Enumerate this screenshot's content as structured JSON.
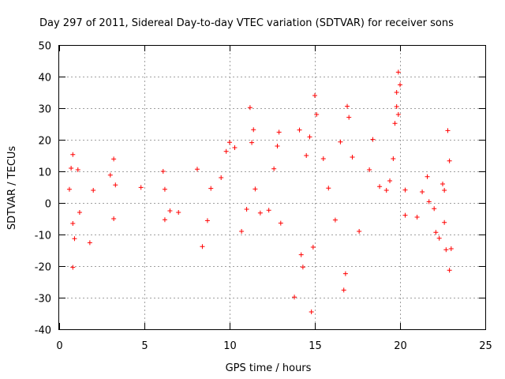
{
  "chart_data": {
    "type": "scatter",
    "title": "Day 297 of 2011, Sidereal Day-to-day VTEC variation (SDTVAR) for receiver sons",
    "xlabel": "GPS time / hours",
    "ylabel": "SDTVAR / TECUs",
    "xlim": [
      0,
      25
    ],
    "ylim": [
      -40,
      50
    ],
    "xticks": [
      0,
      5,
      10,
      15,
      20,
      25
    ],
    "yticks": [
      -40,
      -30,
      -20,
      -10,
      0,
      10,
      20,
      30,
      40,
      50
    ],
    "grid": true,
    "marker": "+",
    "color": "#ff0000",
    "series": [
      {
        "name": "SDTVAR",
        "points": [
          [
            0.8,
            15.3
          ],
          [
            0.7,
            11.0
          ],
          [
            1.1,
            10.5
          ],
          [
            0.6,
            4.3
          ],
          [
            0.8,
            -6.5
          ],
          [
            0.9,
            -11.3
          ],
          [
            0.8,
            -20.4
          ],
          [
            1.2,
            -3.0
          ],
          [
            1.8,
            -12.6
          ],
          [
            2.0,
            4.0
          ],
          [
            3.0,
            8.8
          ],
          [
            3.2,
            13.9
          ],
          [
            3.3,
            5.7
          ],
          [
            3.2,
            -5.0
          ],
          [
            4.8,
            4.9
          ],
          [
            6.1,
            10.0
          ],
          [
            6.2,
            4.3
          ],
          [
            6.2,
            -5.3
          ],
          [
            6.5,
            -2.5
          ],
          [
            7.0,
            -3.0
          ],
          [
            8.1,
            10.7
          ],
          [
            8.4,
            -13.8
          ],
          [
            8.7,
            -5.6
          ],
          [
            8.9,
            4.6
          ],
          [
            9.5,
            8.0
          ],
          [
            9.8,
            16.3
          ],
          [
            10.0,
            19.2
          ],
          [
            10.3,
            17.5
          ],
          [
            10.7,
            -9.0
          ],
          [
            11.0,
            -2.0
          ],
          [
            11.2,
            30.2
          ],
          [
            11.3,
            19.1
          ],
          [
            11.4,
            23.2
          ],
          [
            11.5,
            4.4
          ],
          [
            11.8,
            -3.2
          ],
          [
            12.3,
            -2.3
          ],
          [
            12.6,
            10.8
          ],
          [
            12.8,
            18.0
          ],
          [
            12.9,
            22.4
          ],
          [
            13.0,
            -6.4
          ],
          [
            13.8,
            -29.8
          ],
          [
            14.1,
            23.1
          ],
          [
            14.2,
            -16.4
          ],
          [
            14.3,
            -20.3
          ],
          [
            14.5,
            15.0
          ],
          [
            14.7,
            20.9
          ],
          [
            14.8,
            -34.5
          ],
          [
            14.9,
            -14.0
          ],
          [
            15.0,
            34.0
          ],
          [
            15.1,
            28.0
          ],
          [
            15.5,
            14.0
          ],
          [
            15.8,
            4.7
          ],
          [
            16.2,
            -5.4
          ],
          [
            16.5,
            19.3
          ],
          [
            16.7,
            -27.6
          ],
          [
            16.8,
            -22.4
          ],
          [
            16.9,
            30.6
          ],
          [
            17.0,
            27.1
          ],
          [
            17.2,
            14.5
          ],
          [
            17.6,
            -9.0
          ],
          [
            18.2,
            10.5
          ],
          [
            18.4,
            20.1
          ],
          [
            18.8,
            5.2
          ],
          [
            19.2,
            4.0
          ],
          [
            19.4,
            7.0
          ],
          [
            19.6,
            14.0
          ],
          [
            19.7,
            25.2
          ],
          [
            19.8,
            30.5
          ],
          [
            19.8,
            35.0
          ],
          [
            19.9,
            41.4
          ],
          [
            20.0,
            37.4
          ],
          [
            19.9,
            28.0
          ],
          [
            20.3,
            4.1
          ],
          [
            20.3,
            -3.9
          ],
          [
            21.0,
            -4.5
          ],
          [
            21.3,
            3.5
          ],
          [
            21.6,
            8.3
          ],
          [
            21.7,
            0.4
          ],
          [
            22.0,
            -1.8
          ],
          [
            22.1,
            -9.3
          ],
          [
            22.3,
            -11.2
          ],
          [
            22.5,
            6.0
          ],
          [
            22.6,
            4.0
          ],
          [
            22.7,
            -14.8
          ],
          [
            22.8,
            22.9
          ],
          [
            22.9,
            13.3
          ],
          [
            22.9,
            -21.3
          ],
          [
            23.0,
            -14.5
          ],
          [
            22.6,
            -6.2
          ]
        ]
      }
    ]
  }
}
